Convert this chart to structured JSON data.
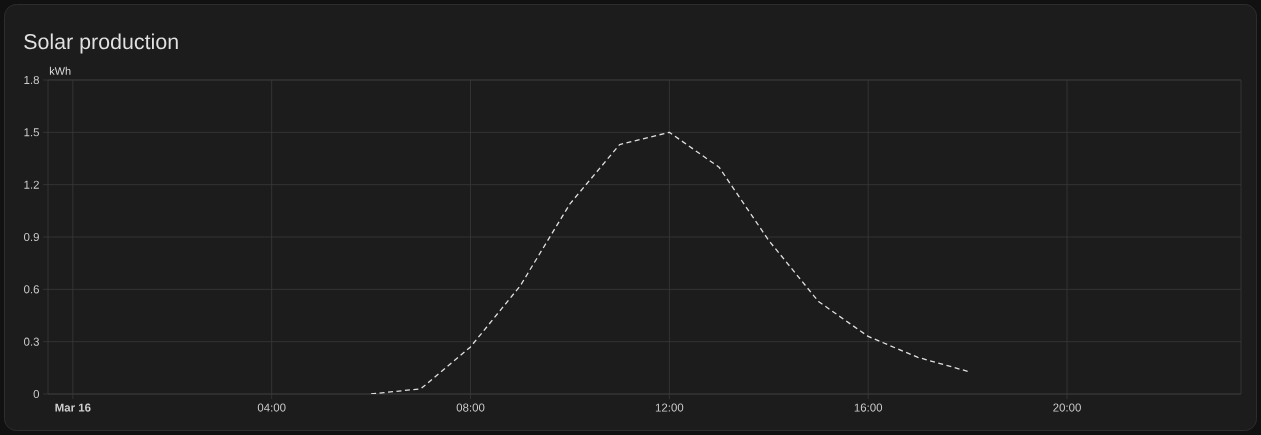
{
  "chart_data": {
    "type": "line",
    "title": "Solar production",
    "ylabel": "kWh",
    "x": [
      6,
      7,
      8,
      9,
      10,
      11,
      12,
      13,
      14,
      15,
      16,
      17,
      18
    ],
    "values": [
      0,
      0.03,
      0.27,
      0.62,
      1.09,
      1.43,
      1.5,
      1.3,
      0.88,
      0.53,
      0.33,
      0.21,
      0.13
    ],
    "color": "#e0e0e0",
    "line_style": "dashed",
    "grid": true,
    "xlim": [
      -0.5,
      23.5
    ],
    "ylim": [
      0,
      1.8
    ],
    "xticks": [
      {
        "value": 0,
        "label": "Mar 16"
      },
      {
        "value": 4,
        "label": "04:00"
      },
      {
        "value": 8,
        "label": "08:00"
      },
      {
        "value": 12,
        "label": "12:00"
      },
      {
        "value": 16,
        "label": "16:00"
      },
      {
        "value": 20,
        "label": "20:00"
      }
    ],
    "yticks": [
      0,
      0.3,
      0.6,
      0.9,
      1.2,
      1.5,
      1.8
    ]
  }
}
